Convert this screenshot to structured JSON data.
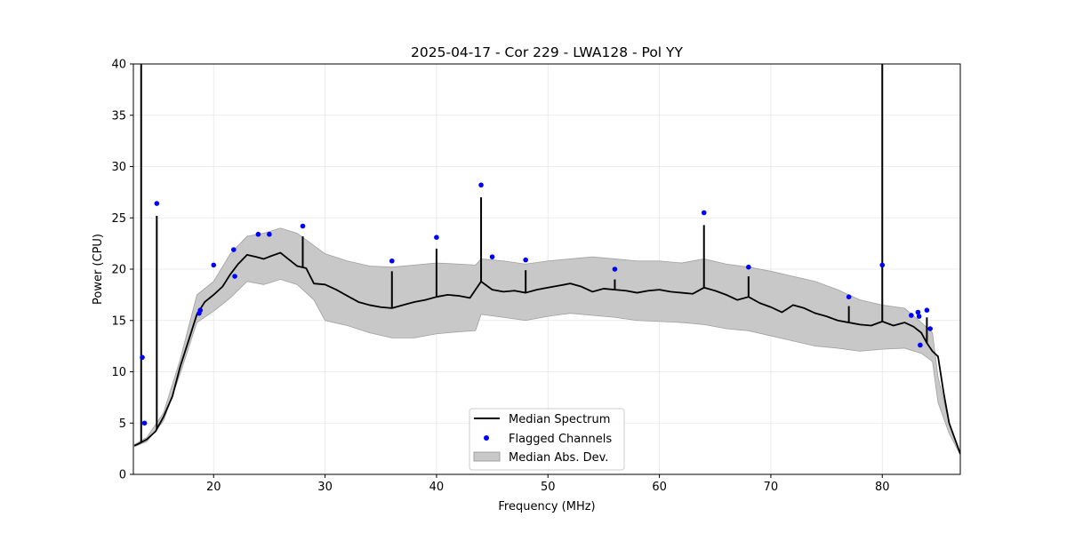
{
  "chart_data": {
    "type": "line",
    "title": "2025-04-17 - Cor 229 - LWA128 - Pol YY",
    "xlabel": "Frequency (MHz)",
    "ylabel": "Power (CPU)",
    "xlim": [
      12.8,
      87
    ],
    "ylim": [
      0,
      40
    ],
    "xticks": [
      20,
      30,
      40,
      50,
      60,
      70,
      80
    ],
    "yticks": [
      0,
      5,
      10,
      15,
      20,
      25,
      30,
      35,
      40
    ],
    "grid": true,
    "legend_position": "bottom-center",
    "legend": [
      "Median Spectrum",
      "Flagged Channels",
      "Median Abs. Dev."
    ],
    "series": [
      {
        "name": "Median Spectrum",
        "color": "#000000",
        "x": [
          12.9,
          13.3,
          14,
          14.8,
          15.5,
          16.3,
          17,
          17.8,
          18.5,
          19.2,
          20,
          20.8,
          21.5,
          22.2,
          23,
          23.8,
          24.5,
          25.2,
          26,
          26.8,
          27.5,
          28.3,
          29,
          30,
          31,
          32,
          33,
          34,
          35,
          36,
          37,
          38,
          39,
          40,
          41,
          42,
          43,
          44,
          45,
          46,
          47,
          48,
          49,
          50,
          51,
          52,
          53,
          54,
          55,
          56,
          57,
          58,
          59,
          60,
          61,
          62,
          63,
          64,
          65,
          66,
          67,
          68,
          69,
          70,
          71,
          72,
          73,
          74,
          75,
          76,
          77,
          78,
          79,
          80,
          81,
          82,
          82.8,
          83.5,
          84,
          84.5,
          85,
          85.5,
          86,
          86.5,
          87
        ],
        "y": [
          2.8,
          3.0,
          3.4,
          4.2,
          5.6,
          7.6,
          10.5,
          13.2,
          15.6,
          16.8,
          17.5,
          18.3,
          19.5,
          20.5,
          21.4,
          21.2,
          21.0,
          21.3,
          21.6,
          20.9,
          20.3,
          20.1,
          18.6,
          18.5,
          18.0,
          17.4,
          16.8,
          16.5,
          16.3,
          16.2,
          16.5,
          16.8,
          17.0,
          17.3,
          17.5,
          17.4,
          17.2,
          18.8,
          18.0,
          17.8,
          17.9,
          17.7,
          18.0,
          18.2,
          18.4,
          18.6,
          18.3,
          17.8,
          18.1,
          18.0,
          17.9,
          17.7,
          17.9,
          18.0,
          17.8,
          17.7,
          17.6,
          18.2,
          17.9,
          17.5,
          17.0,
          17.3,
          16.7,
          16.3,
          15.8,
          16.5,
          16.2,
          15.7,
          15.4,
          15.0,
          14.8,
          14.6,
          14.5,
          14.9,
          14.5,
          14.8,
          14.4,
          13.8,
          12.8,
          12.0,
          11.5,
          8.0,
          5.0,
          3.5,
          2.0
        ]
      },
      {
        "name": "Median Abs. Dev.",
        "color": "#c8c8c8",
        "x": [
          12.9,
          14,
          15.5,
          17,
          18.5,
          20,
          21.5,
          23,
          24.5,
          26,
          27.5,
          29,
          30,
          32,
          34,
          36,
          38,
          40,
          42,
          43.5,
          44,
          46,
          48,
          50,
          52,
          54,
          56,
          58,
          60,
          62,
          64,
          66,
          68,
          70,
          72,
          74,
          76,
          78,
          80,
          82,
          83.5,
          84.5,
          85,
          86,
          87
        ],
        "upper": [
          2.9,
          3.6,
          6.0,
          11.2,
          17.5,
          18.8,
          21.5,
          23.2,
          23.5,
          24.0,
          23.5,
          22.3,
          21.5,
          20.8,
          20.3,
          20.2,
          20.4,
          20.6,
          20.5,
          20.4,
          21.0,
          20.8,
          20.5,
          20.8,
          21.0,
          21.2,
          21.0,
          20.8,
          20.8,
          20.6,
          21.0,
          20.5,
          20.2,
          19.8,
          19.3,
          18.8,
          18.0,
          17.0,
          16.5,
          16.2,
          14.8,
          13.8,
          9.5,
          5.0,
          2.1
        ],
        "lower": [
          2.7,
          3.2,
          5.2,
          9.8,
          14.8,
          15.9,
          17.2,
          18.8,
          18.5,
          19.0,
          18.5,
          17.0,
          15.0,
          14.5,
          13.8,
          13.3,
          13.3,
          13.7,
          13.9,
          14.0,
          15.6,
          15.3,
          15.0,
          15.4,
          15.7,
          15.5,
          15.3,
          15.0,
          14.9,
          14.8,
          14.6,
          14.2,
          14.0,
          13.5,
          13.0,
          12.5,
          12.3,
          12.0,
          12.2,
          12.3,
          11.8,
          11.0,
          7.0,
          4.0,
          1.9
        ]
      }
    ],
    "spikes": [
      {
        "x": 13.5,
        "y": 40
      },
      {
        "x": 14.9,
        "y": 25.2
      },
      {
        "x": 28.0,
        "y": 23.2
      },
      {
        "x": 36.0,
        "y": 19.8
      },
      {
        "x": 40.0,
        "y": 22.0
      },
      {
        "x": 44.0,
        "y": 27.0
      },
      {
        "x": 48.0,
        "y": 19.9
      },
      {
        "x": 56.0,
        "y": 19.0
      },
      {
        "x": 64.0,
        "y": 24.3
      },
      {
        "x": 68.0,
        "y": 19.3
      },
      {
        "x": 77.0,
        "y": 16.4
      },
      {
        "x": 80.0,
        "y": 40
      },
      {
        "x": 84.0,
        "y": 15.3
      }
    ],
    "flagged_channels": {
      "name": "Flagged Channels",
      "color": "#0000ff",
      "x": [
        13.6,
        13.8,
        14.9,
        18.7,
        18.8,
        20.0,
        21.8,
        21.9,
        24.0,
        25.0,
        28.0,
        36.0,
        40.0,
        44.0,
        45.0,
        48.0,
        56.0,
        64.0,
        68.0,
        77.0,
        80.0,
        82.6,
        83.2,
        83.3,
        83.4,
        84.0,
        84.3
      ],
      "y": [
        11.4,
        5.0,
        26.4,
        15.7,
        16.0,
        20.4,
        21.9,
        19.3,
        23.4,
        23.4,
        24.2,
        20.8,
        23.1,
        28.2,
        21.2,
        20.9,
        20.0,
        25.5,
        20.2,
        17.3,
        20.4,
        15.5,
        15.8,
        15.4,
        12.6,
        16.0,
        14.2
      ]
    }
  }
}
